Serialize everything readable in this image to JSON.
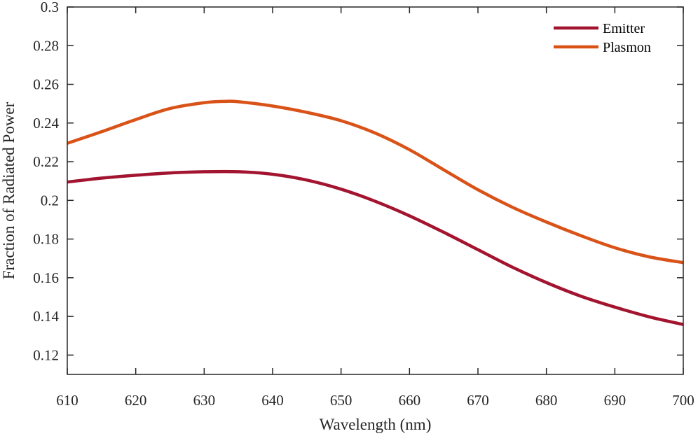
{
  "chart_data": {
    "type": "line",
    "xlabel": "Wavelength (nm)",
    "ylabel": "Fraction of Radiated Power",
    "xlim": [
      610,
      700
    ],
    "ylim": [
      0.11,
      0.3
    ],
    "x_ticks": [
      610,
      620,
      630,
      640,
      650,
      660,
      670,
      680,
      690,
      700
    ],
    "x_tick_labels": [
      "610",
      "620",
      "630",
      "640",
      "650",
      "660",
      "670",
      "680",
      "690",
      "700"
    ],
    "y_ticks": [
      0.12,
      0.14,
      0.16,
      0.18,
      0.2,
      0.22,
      0.24,
      0.26,
      0.28,
      0.3
    ],
    "y_tick_labels": [
      "0.12",
      "0.14",
      "0.16",
      "0.18",
      "0.2",
      "0.22",
      "0.24",
      "0.26",
      "0.28",
      "0.3"
    ],
    "grid": false,
    "legend_position": "top-right",
    "series": [
      {
        "name": "Emitter",
        "color": "#A2142F",
        "x": [
          610,
          615,
          620,
          625,
          630,
          635,
          640,
          645,
          650,
          655,
          660,
          665,
          670,
          675,
          680,
          685,
          690,
          695,
          700
        ],
        "y": [
          0.2095,
          0.2115,
          0.213,
          0.2142,
          0.2148,
          0.2148,
          0.2135,
          0.2105,
          0.2058,
          0.1995,
          0.192,
          0.1835,
          0.1745,
          0.1655,
          0.1575,
          0.1505,
          0.1448,
          0.1398,
          0.1358
        ]
      },
      {
        "name": "Plasmon",
        "color": "#D95319",
        "x": [
          610,
          615,
          620,
          625,
          630,
          633,
          635,
          640,
          645,
          650,
          655,
          660,
          665,
          670,
          675,
          680,
          685,
          690,
          695,
          700
        ],
        "y": [
          0.2295,
          0.2355,
          0.2418,
          0.2475,
          0.2505,
          0.2512,
          0.251,
          0.2488,
          0.2455,
          0.2412,
          0.2348,
          0.2262,
          0.2158,
          0.2055,
          0.1965,
          0.1888,
          0.1818,
          0.1755,
          0.1708,
          0.1678
        ]
      }
    ]
  }
}
